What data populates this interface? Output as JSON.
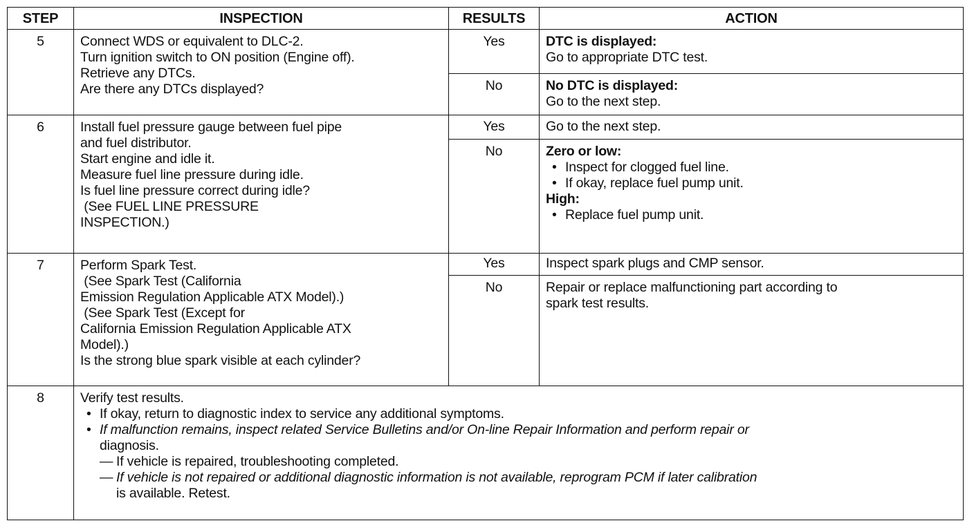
{
  "headers": {
    "step": "STEP",
    "inspection": "INSPECTION",
    "results": "RESULTS",
    "action": "ACTION"
  },
  "rows": [
    {
      "step": "5",
      "inspection": [
        "Connect WDS or equivalent to DLC-2.",
        "Turn ignition switch to ON position (Engine off).",
        "Retrieve any DTCs.",
        "Are there any DTCs displayed?"
      ],
      "yes": "Yes",
      "yes_action": {
        "title": "DTC is displayed:",
        "text": "Go to appropriate DTC test."
      },
      "no": "No",
      "no_action": {
        "title": "No DTC is displayed:",
        "text": "Go to the next step."
      }
    },
    {
      "step": "6",
      "inspection": [
        "Install fuel pressure gauge between fuel pipe",
        "and fuel distributor.",
        "Start engine and idle it.",
        "Measure fuel line pressure during idle.",
        "Is fuel line pressure correct during idle?",
        " (See FUEL LINE PRESSURE",
        "INSPECTION.)"
      ],
      "yes": "Yes",
      "yes_action": {
        "text": "Go to the next step."
      },
      "no": "No",
      "no_action": {
        "title1": "Zero or low:",
        "bullets1": [
          "Inspect for clogged fuel line.",
          "If okay, replace fuel pump unit."
        ],
        "title2": "High:",
        "bullets2": [
          "Replace fuel pump unit."
        ]
      }
    },
    {
      "step": "7",
      "inspection": [
        "Perform Spark Test.",
        " (See Spark Test (California",
        "Emission Regulation Applicable ATX Model).)",
        " (See Spark Test (Except for",
        "California Emission Regulation Applicable ATX",
        "Model).)",
        "Is the strong blue spark visible at each cylinder?"
      ],
      "yes": "Yes",
      "yes_action": {
        "text": "Inspect spark plugs and CMP sensor."
      },
      "no": "No",
      "no_action": {
        "lines": [
          "Repair or replace malfunctioning part according to",
          "spark test results."
        ]
      }
    },
    {
      "step": "8",
      "lines": {
        "intro": "Verify test results.",
        "b1": "If okay, return to diagnostic index to service any additional symptoms.",
        "b2_l1": "If malfunction remains, inspect related Service Bulletins and/or On-line Repair Information and perform repair or",
        "b2_l2": "diagnosis.",
        "d1": "If vehicle is repaired, troubleshooting completed.",
        "d2_l1": "If vehicle is not repaired or additional diagnostic information is not available, reprogram PCM if later calibration",
        "d2_l2": "is available. Retest.",
        "dash": "—"
      }
    }
  ]
}
